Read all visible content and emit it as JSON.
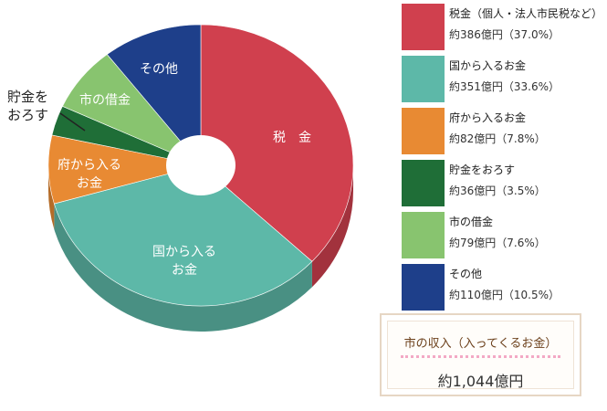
{
  "chart_data": {
    "type": "pie",
    "variant": "donut-3d",
    "start": "top",
    "direction": "clockwise",
    "slices": [
      {
        "key": "tax",
        "label": "税　金",
        "legend_name": "税金（個人・法人市民税など）",
        "legend_value": "約386億円（37.0%）",
        "value": 386,
        "percent": 37.0,
        "color": "#d0404e"
      },
      {
        "key": "national",
        "label": "国から入る\nお金",
        "legend_name": "国から入るお金",
        "legend_value": "約351億円（33.6%）",
        "value": 351,
        "percent": 33.6,
        "color": "#5db8a8"
      },
      {
        "key": "prefecture",
        "label": "府から入る\nお金",
        "legend_name": "府から入るお金",
        "legend_value": "約82億円（7.8%）",
        "value": 82,
        "percent": 7.8,
        "color": "#e88a33"
      },
      {
        "key": "savings",
        "label": "",
        "legend_name": "貯金をおろす",
        "legend_value": "約36億円（3.5%）",
        "value": 36,
        "percent": 3.5,
        "color": "#1f6e37"
      },
      {
        "key": "debt",
        "label": "市の借金",
        "legend_name": "市の借金",
        "legend_value": "約79億円（7.6%）",
        "value": 79,
        "percent": 7.6,
        "color": "#88c46f"
      },
      {
        "key": "other",
        "label": "その他",
        "legend_name": "その他",
        "legend_value": "約110億円（10.5%）",
        "value": 110,
        "percent": 10.5,
        "color": "#1e3f8a"
      }
    ],
    "callout_label": "貯金を\nおろす"
  },
  "summary": {
    "title": "市の収入（入ってくるお金）",
    "total": "約1,044億円",
    "divider_color": "#f3a9c5"
  }
}
